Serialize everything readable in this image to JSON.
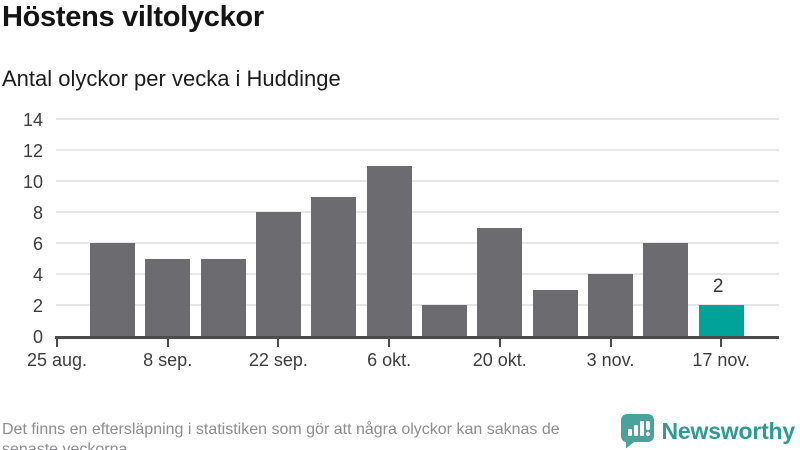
{
  "title": "Höstens viltolyckor",
  "subtitle": "Antal olyckor per vecka i Huddinge",
  "footer": {
    "note_line1": "Det finns en eftersläpning i statistiken som gör att några olyckor kan saknas de",
    "note_line2": "senaste veckorna.",
    "brand_name": "Newsworthy"
  },
  "chart_data": {
    "type": "bar",
    "title": "Höstens viltolyckor",
    "subtitle": "Antal olyckor per vecka i Huddinge",
    "xlabel": "",
    "ylabel": "",
    "values": [
      6,
      5,
      5,
      8,
      9,
      11,
      2,
      7,
      3,
      4,
      6,
      2
    ],
    "highlight_index": 11,
    "value_labels": [
      {
        "index": 11,
        "text": "2"
      }
    ],
    "x_ticks": [
      {
        "label": "25 aug.",
        "slot": 0
      },
      {
        "label": "8 sep.",
        "slot": 2
      },
      {
        "label": "22 sep.",
        "slot": 4
      },
      {
        "label": "6 okt.",
        "slot": 6
      },
      {
        "label": "20 okt.",
        "slot": 8
      },
      {
        "label": "3 nov.",
        "slot": 10
      },
      {
        "label": "17 nov.",
        "slot": 12
      }
    ],
    "note_bar_slots": "bars occupy slots 1..12; slot 0 is the left axis start tick",
    "yticks": [
      0,
      2,
      4,
      6,
      8,
      10,
      12,
      14
    ],
    "ylim": [
      0,
      14
    ],
    "grid": true,
    "legend_position": "none",
    "colors": {
      "bar": "#6b6b70",
      "highlight": "#00a39a",
      "axis": "#4b4b4b",
      "gridline": "#e6e6e6",
      "text": "#3d3d3d"
    }
  }
}
